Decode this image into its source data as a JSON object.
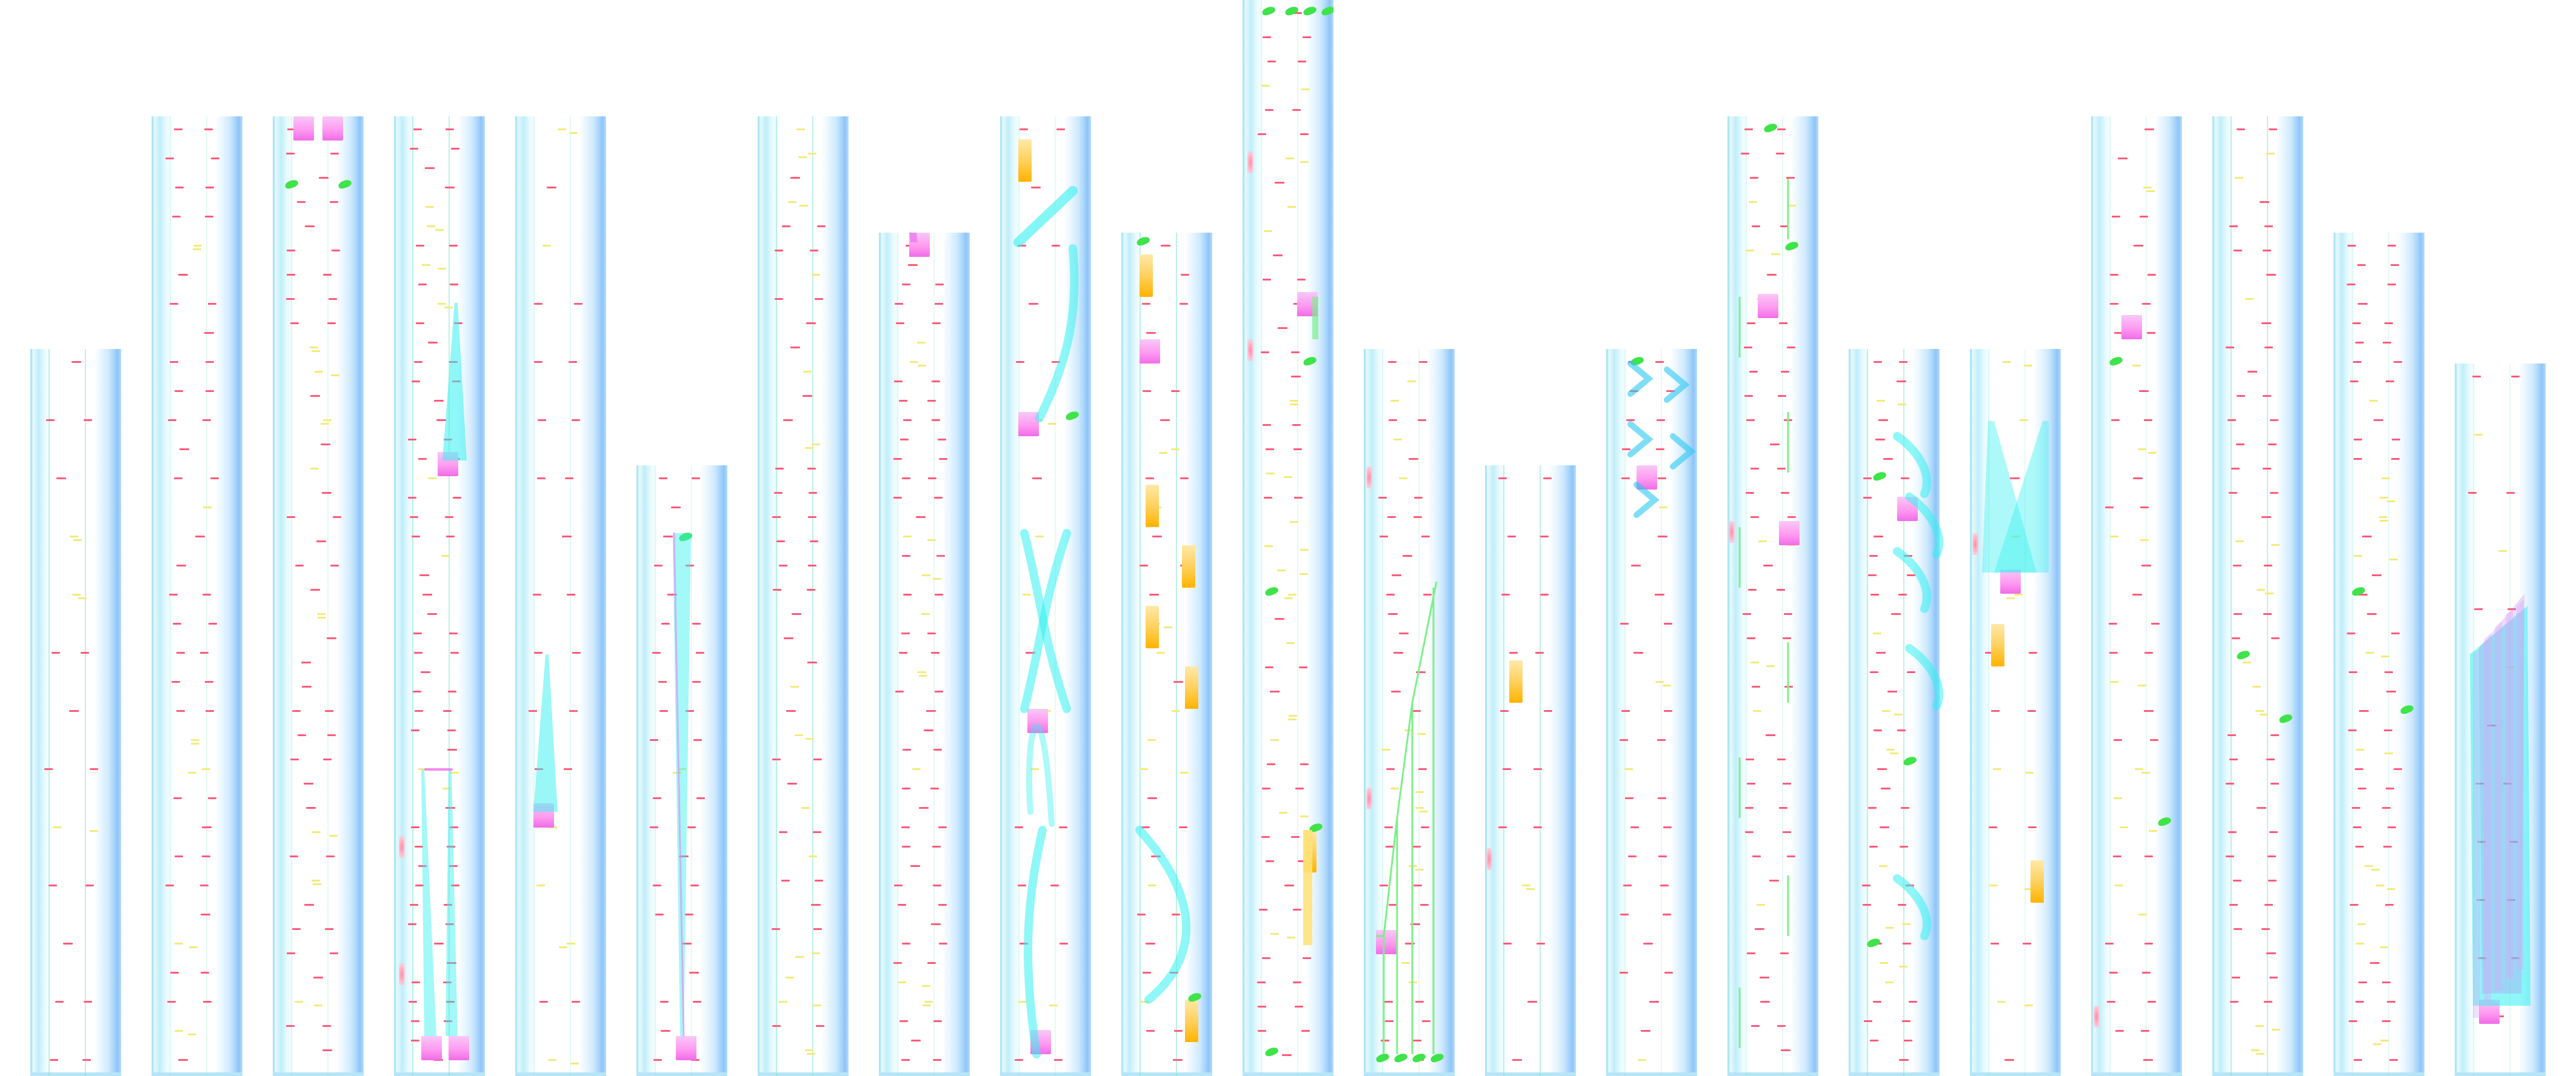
{
  "screen": {
    "name": "note-highway",
    "colors": {
      "background": "#ffffff",
      "lane_light": "#e4f8fc",
      "lane_edge": "#8ec4f8",
      "tap_note": "#ff5a7a",
      "soft_note": "#f4ea7a",
      "hold_body": "#33f0f0",
      "hold_head": "#f06ce8",
      "gold_note": "#ffb300",
      "flick_note": "#3fe34a"
    }
  },
  "columns": [
    {
      "id": 1
    },
    {
      "id": 2
    },
    {
      "id": 3
    },
    {
      "id": 4
    },
    {
      "id": 5
    },
    {
      "id": 6
    },
    {
      "id": 7
    },
    {
      "id": 8
    },
    {
      "id": 9
    },
    {
      "id": 10
    },
    {
      "id": 11
    },
    {
      "id": 12
    },
    {
      "id": 13
    },
    {
      "id": 14
    },
    {
      "id": 15
    },
    {
      "id": 16
    },
    {
      "id": 17
    },
    {
      "id": 18
    },
    {
      "id": 19
    },
    {
      "id": 20
    },
    {
      "id": 21
    }
  ]
}
